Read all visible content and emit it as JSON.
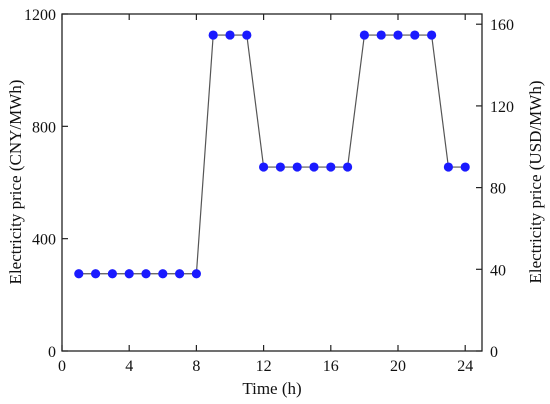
{
  "chart_data": {
    "type": "line",
    "xlabel": "Time (h)",
    "ylabel_left": "Electricity price (CNY/MWh)",
    "ylabel_right": "Electricity price (USD/MWh)",
    "xlim": [
      0,
      25
    ],
    "ylim_left": [
      0,
      1200
    ],
    "ylim_right": [
      0,
      165
    ],
    "x_ticks": [
      0,
      4,
      8,
      12,
      16,
      20,
      24
    ],
    "x_tick_labels": [
      "0",
      "4",
      "8",
      "12",
      "16",
      "20",
      "24"
    ],
    "y_left_ticks": [
      0,
      400,
      800,
      1200
    ],
    "y_left_tick_labels": [
      "0",
      "400",
      "800",
      "1200"
    ],
    "y_right_ticks": [
      0,
      40,
      80,
      120,
      160
    ],
    "y_right_tick_labels": [
      "0",
      "40",
      "80",
      "120",
      "160"
    ],
    "grid": false,
    "legend": "none",
    "series": [
      {
        "axis": "left",
        "color": "#1a1aff",
        "line_color": "#555555",
        "marker": "circle",
        "x": [
          1,
          2,
          3,
          4,
          5,
          6,
          7,
          8,
          9,
          10,
          11,
          12,
          13,
          14,
          15,
          16,
          17,
          18,
          19,
          20,
          21,
          22,
          23,
          24
        ],
        "y": [
          275,
          275,
          275,
          275,
          275,
          275,
          275,
          275,
          1125,
          1125,
          1125,
          655,
          655,
          655,
          655,
          655,
          655,
          1125,
          1125,
          1125,
          1125,
          1125,
          655,
          655
        ]
      }
    ]
  }
}
